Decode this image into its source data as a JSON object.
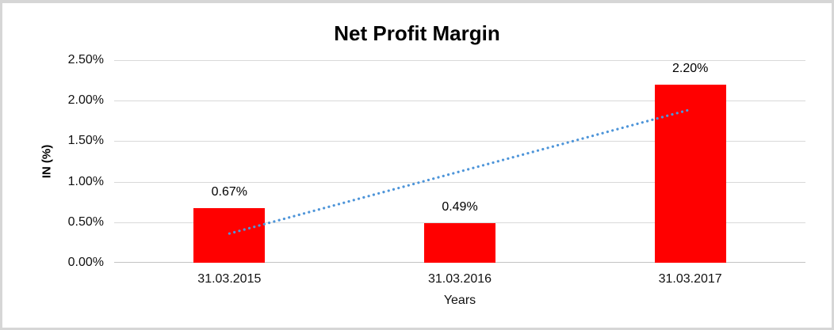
{
  "chart_data": {
    "type": "bar",
    "title": "Net Profit Margin",
    "xlabel": "Years",
    "ylabel": "IN (%)",
    "categories": [
      "31.03.2015",
      "31.03.2016",
      "31.03.2017"
    ],
    "values": [
      0.67,
      0.49,
      2.2
    ],
    "data_labels": [
      "0.67%",
      "0.49%",
      "2.20%"
    ],
    "ylim": [
      0,
      2.5
    ],
    "ytick_step": 0.5,
    "ytick_labels": [
      "0.00%",
      "0.50%",
      "1.00%",
      "1.50%",
      "2.00%",
      "2.50%"
    ],
    "grid": true,
    "legend": "none",
    "bar_color": "#FF0000",
    "gridline_color": "#D9D9D9",
    "trendline": {
      "type": "linear",
      "style": "dotted",
      "color": "#4E95D9",
      "start_value": 0.36,
      "end_value": 1.89
    }
  }
}
